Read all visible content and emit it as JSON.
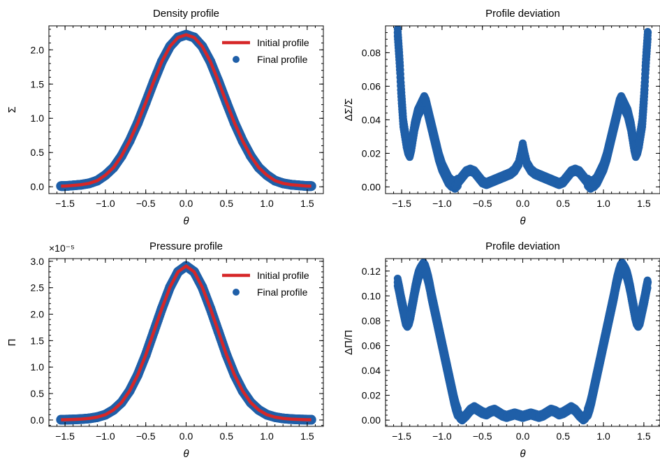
{
  "chart_data": [
    {
      "type": "line",
      "title": "Density profile",
      "xlabel": "θ",
      "ylabel": "Σ",
      "xlim": [
        -1.7,
        1.7
      ],
      "ylim": [
        -0.1,
        2.35
      ],
      "xticks": [
        -1.5,
        -1.0,
        -0.5,
        0.0,
        0.5,
        1.0,
        1.5
      ],
      "xtick_labels": [
        "−1.5",
        "−1.0",
        "−0.5",
        "0.0",
        "0.5",
        "1.0",
        "1.5"
      ],
      "yticks": [
        0.0,
        0.5,
        1.0,
        1.5,
        2.0
      ],
      "ytick_labels": [
        "0.0",
        "0.5",
        "1.0",
        "1.5",
        "2.0"
      ],
      "legend": {
        "position": "top-right",
        "entries": [
          "Initial profile",
          "Final profile"
        ]
      },
      "series": [
        {
          "name": "Initial profile",
          "kind": "line",
          "color": "#d62728",
          "x": [
            -1.55,
            -1.5,
            -1.4,
            -1.3,
            -1.2,
            -1.1,
            -1.0,
            -0.9,
            -0.8,
            -0.7,
            -0.6,
            -0.5,
            -0.4,
            -0.3,
            -0.2,
            -0.1,
            0.0,
            0.1,
            0.2,
            0.3,
            0.4,
            0.5,
            0.6,
            0.7,
            0.8,
            0.9,
            1.0,
            1.1,
            1.2,
            1.3,
            1.4,
            1.5,
            1.55
          ],
          "y": [
            0.01,
            0.01,
            0.02,
            0.03,
            0.05,
            0.09,
            0.17,
            0.28,
            0.45,
            0.67,
            0.93,
            1.23,
            1.54,
            1.83,
            2.05,
            2.18,
            2.22,
            2.18,
            2.05,
            1.83,
            1.54,
            1.23,
            0.93,
            0.67,
            0.45,
            0.28,
            0.17,
            0.09,
            0.05,
            0.03,
            0.02,
            0.01,
            0.01
          ]
        },
        {
          "name": "Final profile",
          "kind": "scatter",
          "color": "#1f5fa8",
          "x": [
            -1.55,
            -1.5,
            -1.4,
            -1.3,
            -1.2,
            -1.1,
            -1.0,
            -0.9,
            -0.8,
            -0.7,
            -0.6,
            -0.5,
            -0.4,
            -0.3,
            -0.2,
            -0.1,
            0.0,
            0.1,
            0.2,
            0.3,
            0.4,
            0.5,
            0.6,
            0.7,
            0.8,
            0.9,
            1.0,
            1.1,
            1.2,
            1.3,
            1.4,
            1.5,
            1.55
          ],
          "y": [
            0.01,
            0.01,
            0.02,
            0.03,
            0.05,
            0.09,
            0.17,
            0.28,
            0.45,
            0.67,
            0.93,
            1.23,
            1.54,
            1.83,
            2.05,
            2.18,
            2.22,
            2.18,
            2.05,
            1.83,
            1.54,
            1.23,
            0.93,
            0.67,
            0.45,
            0.28,
            0.17,
            0.09,
            0.05,
            0.03,
            0.02,
            0.01,
            0.01
          ]
        }
      ]
    },
    {
      "type": "scatter",
      "title": "Profile deviation",
      "xlabel": "θ",
      "ylabel": "ΔΣ/Σ",
      "xlim": [
        -1.7,
        1.7
      ],
      "ylim": [
        -0.004,
        0.096
      ],
      "xticks": [
        -1.5,
        -1.0,
        -0.5,
        0.0,
        0.5,
        1.0,
        1.5
      ],
      "xtick_labels": [
        "−1.5",
        "−1.0",
        "−0.5",
        "0.0",
        "0.5",
        "1.0",
        "1.5"
      ],
      "yticks": [
        0.0,
        0.02,
        0.04,
        0.06,
        0.08
      ],
      "ytick_labels": [
        "0.00",
        "0.02",
        "0.04",
        "0.06",
        "0.08"
      ],
      "series": [
        {
          "color": "#1f5fa8",
          "x": [
            -1.55,
            -1.54,
            -1.53,
            -1.52,
            -1.51,
            -1.5,
            -1.49,
            -1.48,
            -1.46,
            -1.44,
            -1.42,
            -1.4,
            -1.38,
            -1.36,
            -1.34,
            -1.32,
            -1.3,
            -1.28,
            -1.26,
            -1.24,
            -1.22,
            -1.2,
            -1.18,
            -1.16,
            -1.14,
            -1.12,
            -1.1,
            -1.08,
            -1.06,
            -1.04,
            -1.02,
            -1.0,
            -0.98,
            -0.96,
            -0.94,
            -0.92,
            -0.9,
            -0.88,
            -0.86,
            -0.84,
            -0.82,
            -0.8,
            -0.75,
            -0.7,
            -0.65,
            -0.6,
            -0.55,
            -0.5,
            -0.45,
            -0.4,
            -0.35,
            -0.3,
            -0.25,
            -0.2,
            -0.15,
            -0.1,
            -0.05,
            -0.02,
            0.0,
            0.02,
            0.05,
            0.1,
            0.15,
            0.2,
            0.25,
            0.3,
            0.35,
            0.4,
            0.45,
            0.5,
            0.55,
            0.6,
            0.65,
            0.7,
            0.75,
            0.8,
            0.82,
            0.84,
            0.86,
            0.88,
            0.9,
            0.92,
            0.94,
            0.96,
            0.98,
            1.0,
            1.02,
            1.04,
            1.06,
            1.08,
            1.1,
            1.12,
            1.14,
            1.16,
            1.18,
            1.2,
            1.22,
            1.24,
            1.26,
            1.28,
            1.3,
            1.32,
            1.34,
            1.36,
            1.38,
            1.4,
            1.42,
            1.44,
            1.46,
            1.48,
            1.49,
            1.5,
            1.51,
            1.52,
            1.53,
            1.54,
            1.55
          ],
          "y": [
            0.092,
            0.085,
            0.078,
            0.07,
            0.06,
            0.052,
            0.045,
            0.038,
            0.032,
            0.026,
            0.022,
            0.02,
            0.024,
            0.03,
            0.036,
            0.04,
            0.044,
            0.046,
            0.048,
            0.05,
            0.052,
            0.05,
            0.046,
            0.042,
            0.038,
            0.034,
            0.03,
            0.026,
            0.022,
            0.018,
            0.015,
            0.012,
            0.01,
            0.008,
            0.006,
            0.004,
            0.003,
            0.002,
            0.002,
            0.001,
            0.002,
            0.003,
            0.006,
            0.009,
            0.01,
            0.009,
            0.006,
            0.003,
            0.002,
            0.003,
            0.004,
            0.005,
            0.006,
            0.007,
            0.008,
            0.01,
            0.014,
            0.02,
            0.025,
            0.02,
            0.014,
            0.01,
            0.008,
            0.007,
            0.006,
            0.005,
            0.004,
            0.003,
            0.002,
            0.003,
            0.006,
            0.009,
            0.01,
            0.009,
            0.006,
            0.003,
            0.002,
            0.001,
            0.002,
            0.002,
            0.003,
            0.004,
            0.006,
            0.008,
            0.01,
            0.012,
            0.015,
            0.018,
            0.022,
            0.026,
            0.03,
            0.034,
            0.038,
            0.042,
            0.046,
            0.05,
            0.052,
            0.05,
            0.048,
            0.046,
            0.044,
            0.04,
            0.036,
            0.03,
            0.024,
            0.02,
            0.022,
            0.026,
            0.032,
            0.038,
            0.045,
            0.052,
            0.06,
            0.07,
            0.078,
            0.085,
            0.092
          ]
        }
      ]
    },
    {
      "type": "line",
      "title": "Pressure profile",
      "xlabel": "θ",
      "ylabel": "Π",
      "scale_label": "×10⁻⁵",
      "xlim": [
        -1.7,
        1.7
      ],
      "ylim": [
        -0.12,
        3.05
      ],
      "xticks": [
        -1.5,
        -1.0,
        -0.5,
        0.0,
        0.5,
        1.0,
        1.5
      ],
      "xtick_labels": [
        "−1.5",
        "−1.0",
        "−0.5",
        "0.0",
        "0.5",
        "1.0",
        "1.5"
      ],
      "yticks": [
        0.0,
        0.5,
        1.0,
        1.5,
        2.0,
        2.5,
        3.0
      ],
      "ytick_labels": [
        "0.0",
        "0.5",
        "1.0",
        "1.5",
        "2.0",
        "2.5",
        "3.0"
      ],
      "legend": {
        "position": "top-right",
        "entries": [
          "Initial profile",
          "Final profile"
        ]
      },
      "series": [
        {
          "name": "Initial profile",
          "kind": "line",
          "color": "#d62728",
          "x": [
            -1.55,
            -1.5,
            -1.4,
            -1.3,
            -1.2,
            -1.1,
            -1.0,
            -0.9,
            -0.8,
            -0.7,
            -0.6,
            -0.5,
            -0.4,
            -0.3,
            -0.2,
            -0.1,
            0.0,
            0.1,
            0.2,
            0.3,
            0.4,
            0.5,
            0.6,
            0.7,
            0.8,
            0.9,
            1.0,
            1.1,
            1.2,
            1.3,
            1.4,
            1.5,
            1.55
          ],
          "y": [
            0.005,
            0.006,
            0.01,
            0.017,
            0.03,
            0.055,
            0.1,
            0.19,
            0.33,
            0.55,
            0.85,
            1.23,
            1.67,
            2.11,
            2.51,
            2.8,
            2.91,
            2.8,
            2.51,
            2.11,
            1.67,
            1.23,
            0.85,
            0.55,
            0.33,
            0.19,
            0.1,
            0.055,
            0.03,
            0.017,
            0.01,
            0.006,
            0.005
          ]
        },
        {
          "name": "Final profile",
          "kind": "scatter",
          "color": "#1f5fa8",
          "x": [
            -1.55,
            -1.5,
            -1.4,
            -1.3,
            -1.2,
            -1.1,
            -1.0,
            -0.9,
            -0.8,
            -0.7,
            -0.6,
            -0.5,
            -0.4,
            -0.3,
            -0.2,
            -0.1,
            0.0,
            0.1,
            0.2,
            0.3,
            0.4,
            0.5,
            0.6,
            0.7,
            0.8,
            0.9,
            1.0,
            1.1,
            1.2,
            1.3,
            1.4,
            1.5,
            1.55
          ],
          "y": [
            0.005,
            0.006,
            0.01,
            0.017,
            0.03,
            0.055,
            0.1,
            0.19,
            0.33,
            0.55,
            0.85,
            1.23,
            1.67,
            2.11,
            2.51,
            2.8,
            2.91,
            2.8,
            2.51,
            2.11,
            1.67,
            1.23,
            0.85,
            0.55,
            0.33,
            0.19,
            0.1,
            0.055,
            0.03,
            0.017,
            0.01,
            0.006,
            0.005
          ]
        }
      ]
    },
    {
      "type": "scatter",
      "title": "Profile deviation",
      "xlabel": "θ",
      "ylabel": "ΔΠ/Π",
      "xlim": [
        -1.7,
        1.7
      ],
      "ylim": [
        -0.005,
        0.13
      ],
      "xticks": [
        -1.5,
        -1.0,
        -0.5,
        0.0,
        0.5,
        1.0,
        1.5
      ],
      "xtick_labels": [
        "−1.5",
        "−1.0",
        "−0.5",
        "0.0",
        "0.5",
        "1.0",
        "1.5"
      ],
      "yticks": [
        0.0,
        0.02,
        0.04,
        0.06,
        0.08,
        0.1,
        0.12
      ],
      "ytick_labels": [
        "0.00",
        "0.02",
        "0.04",
        "0.06",
        "0.08",
        "0.10",
        "0.12"
      ],
      "series": [
        {
          "color": "#1f5fa8",
          "x": [
            -1.55,
            -1.53,
            -1.51,
            -1.49,
            -1.47,
            -1.45,
            -1.43,
            -1.41,
            -1.39,
            -1.37,
            -1.35,
            -1.33,
            -1.31,
            -1.29,
            -1.27,
            -1.25,
            -1.23,
            -1.21,
            -1.19,
            -1.17,
            -1.15,
            -1.13,
            -1.11,
            -1.09,
            -1.07,
            -1.05,
            -1.03,
            -1.01,
            -0.99,
            -0.97,
            -0.95,
            -0.93,
            -0.91,
            -0.89,
            -0.87,
            -0.85,
            -0.83,
            -0.81,
            -0.79,
            -0.77,
            -0.75,
            -0.7,
            -0.65,
            -0.6,
            -0.55,
            -0.5,
            -0.45,
            -0.4,
            -0.35,
            -0.3,
            -0.25,
            -0.2,
            -0.15,
            -0.1,
            -0.05,
            0.0,
            0.05,
            0.1,
            0.15,
            0.2,
            0.25,
            0.3,
            0.35,
            0.4,
            0.45,
            0.5,
            0.55,
            0.6,
            0.65,
            0.7,
            0.75,
            0.77,
            0.79,
            0.81,
            0.83,
            0.85,
            0.87,
            0.89,
            0.91,
            0.93,
            0.95,
            0.97,
            0.99,
            1.01,
            1.03,
            1.05,
            1.07,
            1.09,
            1.11,
            1.13,
            1.15,
            1.17,
            1.19,
            1.21,
            1.23,
            1.25,
            1.27,
            1.29,
            1.31,
            1.33,
            1.35,
            1.37,
            1.39,
            1.41,
            1.43,
            1.45,
            1.47,
            1.49,
            1.51,
            1.53,
            1.55
          ],
          "y": [
            0.111,
            0.105,
            0.098,
            0.092,
            0.086,
            0.08,
            0.078,
            0.08,
            0.085,
            0.092,
            0.099,
            0.106,
            0.112,
            0.117,
            0.12,
            0.122,
            0.124,
            0.122,
            0.118,
            0.113,
            0.107,
            0.1,
            0.094,
            0.088,
            0.082,
            0.076,
            0.07,
            0.064,
            0.058,
            0.052,
            0.046,
            0.04,
            0.034,
            0.028,
            0.022,
            0.016,
            0.011,
            0.007,
            0.004,
            0.002,
            0.001,
            0.004,
            0.008,
            0.01,
            0.008,
            0.006,
            0.005,
            0.007,
            0.008,
            0.006,
            0.004,
            0.003,
            0.004,
            0.005,
            0.004,
            0.003,
            0.004,
            0.005,
            0.004,
            0.003,
            0.004,
            0.006,
            0.008,
            0.007,
            0.005,
            0.006,
            0.008,
            0.01,
            0.008,
            0.004,
            0.001,
            0.002,
            0.004,
            0.007,
            0.011,
            0.016,
            0.022,
            0.028,
            0.034,
            0.04,
            0.046,
            0.052,
            0.058,
            0.064,
            0.07,
            0.076,
            0.082,
            0.088,
            0.094,
            0.1,
            0.107,
            0.113,
            0.118,
            0.122,
            0.124,
            0.122,
            0.12,
            0.117,
            0.112,
            0.106,
            0.099,
            0.092,
            0.085,
            0.08,
            0.078,
            0.08,
            0.086,
            0.092,
            0.098,
            0.105,
            0.111
          ]
        }
      ]
    }
  ]
}
